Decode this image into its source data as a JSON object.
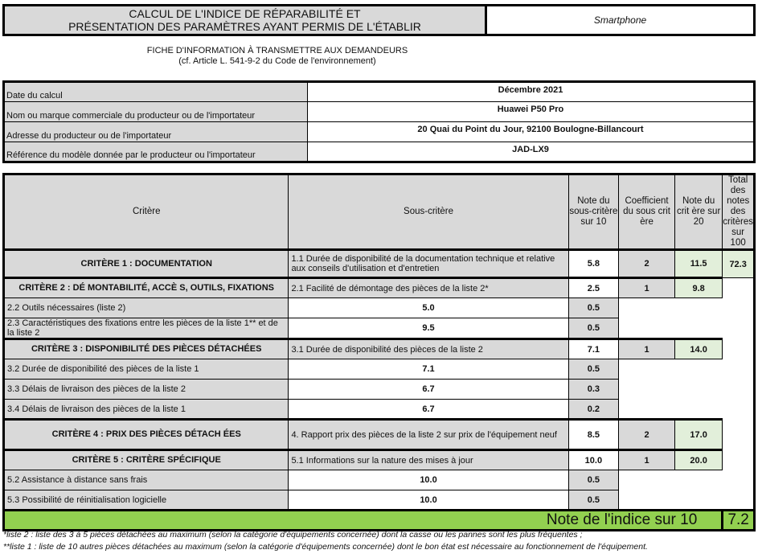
{
  "header": {
    "title_line1": "CALCUL DE L'INDICE DE RÉPARABILITÉ ET",
    "title_line2": "PRÉSENTATION DES PARAMÈTRES AYANT PERMIS DE L'ÉTABLIR",
    "category": "Smartphone"
  },
  "subtitle": {
    "line1": "FICHE D'INFORMATION À TRANSMETTRE AUX DEMANDEURS",
    "line2": "(cf. Article L. 541-9-2 du Code de l'environnement)"
  },
  "info": [
    {
      "label": "Date du calcul",
      "value": "Décembre 2021"
    },
    {
      "label": "Nom ou marque commerciale du producteur ou de l'importateur",
      "value": "Huawei P50 Pro"
    },
    {
      "label": "Adresse du producteur ou de l'importateur",
      "value": "20 Quai du Point du Jour, 92100 Boulogne-Billancourt"
    },
    {
      "label": "Référence du modèle donnée par le producteur ou l'importateur",
      "value": "JAD-LX9"
    }
  ],
  "table": {
    "headers": [
      "Critère",
      "Sous-critère",
      "Note du sous-critère sur 10",
      "Coefficient du sous crit ère",
      "Note du crit ère sur 20",
      "Total des notes des critères sur 100"
    ],
    "criteria": [
      {
        "name": "CRITÈRE 1 : DOCUMENTATION",
        "score": "11.5",
        "subs": [
          {
            "label": "1.1 Durée de disponibilité de la documentation technique et relative aux conseils d'utilisation et d'entretien",
            "note": "5.8",
            "coef": "2"
          }
        ]
      },
      {
        "name": "CRITÈRE 2 : DÉ MONTABILITÉ, ACCÈ S, OUTILS, FIXATIONS",
        "score": "9.8",
        "subs": [
          {
            "label": "2.1 Facilité de démontage des pièces de la liste 2*",
            "note": "2.5",
            "coef": "1"
          },
          {
            "label": "2.2 Outils nécessaires (liste 2)",
            "note": "5.0",
            "coef": "0.5"
          },
          {
            "label": "2.3 Caractéristiques des fixations entre les pièces de la liste 1** et de la liste 2",
            "note": "9.5",
            "coef": "0.5"
          }
        ]
      },
      {
        "name": "CRITÈRE 3 : DISPONIBILITÉ DES PIÈCES DÉTACHÉES",
        "score": "14.0",
        "subs": [
          {
            "label": "3.1 Durée de disponibilité des pièces de la liste 2",
            "note": "7.1",
            "coef": "1"
          },
          {
            "label": "3.2 Durée de disponibilité des pièces de la liste 1",
            "note": "7.1",
            "coef": "0.5"
          },
          {
            "label": "3.3 Délais de livraison des pièces de la liste 2",
            "note": "6.7",
            "coef": "0.3"
          },
          {
            "label": "3.4 Délais de livraison des pièces de la liste 1",
            "note": "6.7",
            "coef": "0.2"
          }
        ]
      },
      {
        "name": "CRITÈRE 4 : PRIX DES PIÈCES DÉTACH ÉES",
        "score": "17.0",
        "subs": [
          {
            "label": "4. Rapport prix des pièces de la liste 2 sur prix de l'équipement neuf",
            "note": "8.5",
            "coef": "2"
          }
        ]
      },
      {
        "name": "CRITÈRE 5 : CRITÈRE SPÉCIFIQUE",
        "score": "20.0",
        "subs": [
          {
            "label": "5.1 Informations sur la nature des mises à jour",
            "note": "10.0",
            "coef": "1"
          },
          {
            "label": "5.2 Assistance à distance sans frais",
            "note": "10.0",
            "coef": "0.5"
          },
          {
            "label": "5.3 Possibilité de réinitialisation logicielle",
            "note": "10.0",
            "coef": "0.5"
          }
        ]
      }
    ],
    "total": "72.3",
    "final_label": "Note de l'indice sur 10",
    "final_value": "7.2"
  },
  "footnotes": [
    "*liste 2 : liste des 3 à 5 pièces détachées au maximum (selon la catégorie d'équipements concernée) dont la casse ou les pannes sont les plus fréquentes ;",
    "**liste 1 : liste de 10 autres pièces détachées au maximum (selon la catégorie d'équipements concernée) dont le bon état est nécessaire au fonctionnement de l'équipement."
  ],
  "colors": {
    "gray": "#d9d9d9",
    "light_green": "#e2efda",
    "green": "#92d050"
  }
}
